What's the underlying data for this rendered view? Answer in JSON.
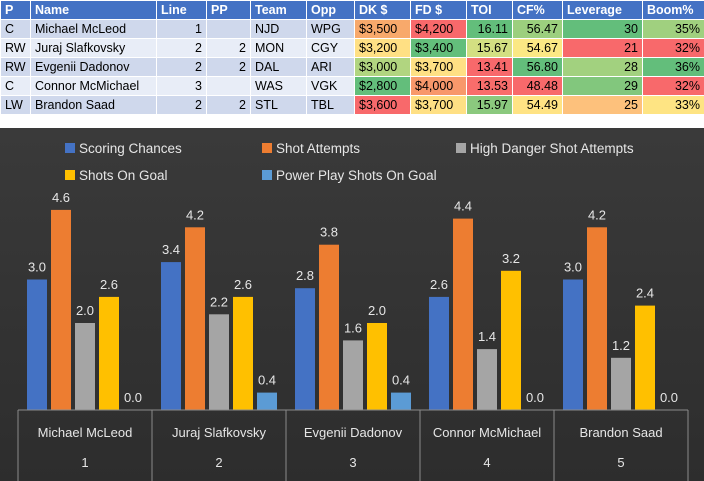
{
  "table": {
    "headers": [
      "P",
      "Name",
      "Line",
      "PP",
      "Team",
      "Opp",
      "DK $",
      "FD $",
      "TOI",
      "CF%",
      "Leverage",
      "Boom%"
    ],
    "rows": [
      {
        "pos": "C",
        "name": "Michael McLeod",
        "line": "1",
        "pp": "",
        "team": "NJD",
        "opp": "WPG",
        "dk": "$3,500",
        "fd": "$4,200",
        "toi": "16.11",
        "cf": "56.47",
        "leverage": "30",
        "boom": "35%",
        "colors": {
          "dk": "#f8a96b",
          "fd": "#f8696b",
          "toi": "#63be7b",
          "cf": "#9ccf7e",
          "leverage": "#63be7b",
          "boom": "#a0d07f"
        }
      },
      {
        "pos": "RW",
        "name": "Juraj Slafkovsky",
        "line": "2",
        "pp": "2",
        "team": "MON",
        "opp": "CGY",
        "dk": "$3,200",
        "fd": "$3,400",
        "toi": "15.67",
        "cf": "54.67",
        "leverage": "21",
        "boom": "32%",
        "colors": {
          "dk": "#ffe084",
          "fd": "#63be7b",
          "toi": "#d3df82",
          "cf": "#fbe884",
          "leverage": "#f8696b",
          "boom": "#f8696b"
        }
      },
      {
        "pos": "RW",
        "name": "Evgenii Dadonov",
        "line": "2",
        "pp": "2",
        "team": "DAL",
        "opp": "ARI",
        "dk": "$3,000",
        "fd": "$3,700",
        "toi": "13.41",
        "cf": "56.80",
        "leverage": "28",
        "boom": "36%",
        "colors": {
          "dk": "#b1d580",
          "fd": "#ffe084",
          "toi": "#f8696b",
          "cf": "#63be7b",
          "leverage": "#a2d17f",
          "boom": "#63be7b"
        }
      },
      {
        "pos": "C",
        "name": "Connor McMichael",
        "line": "3",
        "pp": "",
        "team": "WAS",
        "opp": "VGK",
        "dk": "$2,800",
        "fd": "$4,000",
        "toi": "13.53",
        "cf": "48.48",
        "leverage": "29",
        "boom": "32%",
        "colors": {
          "dk": "#63be7b",
          "fd": "#f8986b",
          "toi": "#f86d6b",
          "cf": "#f8696b",
          "leverage": "#82c77d",
          "boom": "#f8696b"
        }
      },
      {
        "pos": "LW",
        "name": "Brandon Saad",
        "line": "2",
        "pp": "2",
        "team": "STL",
        "opp": "TBL",
        "dk": "$3,600",
        "fd": "$3,700",
        "toi": "15.97",
        "cf": "54.49",
        "leverage": "25",
        "boom": "33%",
        "colors": {
          "dk": "#f8696b",
          "fd": "#ffe084",
          "toi": "#8bc97e",
          "cf": "#ffe384",
          "leverage": "#fdc17c",
          "boom": "#fee483"
        }
      }
    ]
  },
  "chart_data": {
    "type": "bar",
    "title": "",
    "xlabel": "",
    "ylabel": "",
    "ylim": [
      0,
      5
    ],
    "grid": false,
    "legend_position": "top",
    "categories": [
      {
        "name": "Michael McLeod",
        "group": "1"
      },
      {
        "name": "Juraj Slafkovsky",
        "group": "2"
      },
      {
        "name": "Evgenii Dadonov",
        "group": "3"
      },
      {
        "name": "Connor McMichael",
        "group": "4"
      },
      {
        "name": "Brandon Saad",
        "group": "5"
      }
    ],
    "series": [
      {
        "name": "Scoring Chances",
        "color": "#4472c4",
        "values": [
          3.0,
          3.4,
          2.8,
          2.6,
          3.0
        ],
        "labels": [
          "3.0",
          "3.4",
          "2.8",
          "2.6",
          "3.0"
        ]
      },
      {
        "name": "Shot Attempts",
        "color": "#ed7d31",
        "values": [
          4.6,
          4.2,
          3.8,
          4.4,
          4.2
        ],
        "labels": [
          "4.6",
          "4.2",
          "3.8",
          "4.4",
          "4.2"
        ]
      },
      {
        "name": "High Danger Shot Attempts",
        "color": "#a5a5a5",
        "values": [
          2.0,
          2.2,
          1.6,
          1.4,
          1.2
        ],
        "labels": [
          "2.0",
          "2.2",
          "1.6",
          "1.4",
          "1.2"
        ]
      },
      {
        "name": "Shots On Goal",
        "color": "#ffc000",
        "values": [
          2.6,
          2.6,
          2.0,
          3.2,
          2.4
        ],
        "labels": [
          "2.6",
          "2.6",
          "2.0",
          "3.2",
          "2.4"
        ]
      },
      {
        "name": "Power Play Shots On Goal",
        "color": "#5b9bd5",
        "values": [
          0.0,
          0.4,
          0.4,
          0.0,
          0.0
        ],
        "labels": [
          "0.0",
          "0.4",
          "0.4",
          "0.0",
          "0.0"
        ]
      }
    ]
  }
}
